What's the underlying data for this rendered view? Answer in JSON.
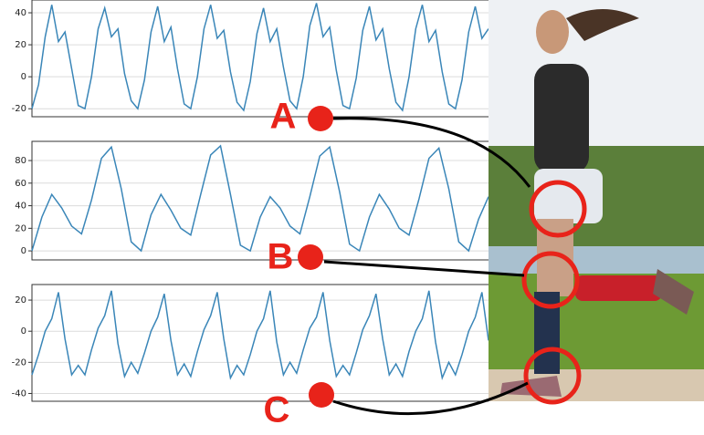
{
  "chart_data": [
    {
      "type": "line",
      "ylim": [
        -25,
        48
      ],
      "yticks": [
        -20,
        0,
        20,
        40
      ],
      "grid": true,
      "series": [
        {
          "color": "#3a86b8",
          "values": [
            -20,
            -5,
            25,
            45,
            22,
            28,
            5,
            -18,
            -20,
            0,
            30,
            43,
            25,
            30,
            2,
            -15,
            -20,
            -2,
            28,
            44,
            22,
            31,
            5,
            -17,
            -20,
            0,
            30,
            45,
            24,
            29,
            3,
            -16,
            -21,
            -3,
            27,
            43,
            22,
            30,
            6,
            -15,
            -20,
            0,
            32,
            46,
            25,
            31,
            4,
            -18,
            -20,
            -1,
            29,
            44,
            23,
            30,
            5,
            -16,
            -21,
            0,
            30,
            45,
            22,
            29,
            3,
            -17,
            -20,
            -2,
            28,
            44,
            24,
            30
          ]
        }
      ]
    },
    {
      "type": "line",
      "ylim": [
        -8,
        97
      ],
      "yticks": [
        0,
        20,
        40,
        60,
        80
      ],
      "grid": true,
      "series": [
        {
          "color": "#3a86b8",
          "values": [
            0,
            30,
            50,
            38,
            22,
            15,
            45,
            82,
            92,
            55,
            8,
            0,
            32,
            50,
            36,
            20,
            14,
            50,
            85,
            93,
            50,
            5,
            0,
            30,
            48,
            38,
            22,
            15,
            48,
            84,
            92,
            52,
            6,
            0,
            30,
            50,
            37,
            20,
            14,
            46,
            82,
            91,
            55,
            8,
            0,
            28,
            48
          ]
        }
      ]
    },
    {
      "type": "line",
      "ylim": [
        -45,
        30
      ],
      "yticks": [
        -40,
        -20,
        0,
        20
      ],
      "grid": true,
      "series": [
        {
          "color": "#3a86b8",
          "values": [
            -28,
            -15,
            0,
            8,
            25,
            -5,
            -28,
            -22,
            -28,
            -12,
            2,
            10,
            26,
            -8,
            -29,
            -20,
            -27,
            -14,
            0,
            9,
            24,
            -6,
            -28,
            -21,
            -29,
            -13,
            1,
            10,
            25,
            -5,
            -30,
            -22,
            -28,
            -15,
            0,
            8,
            26,
            -7,
            -28,
            -20,
            -27,
            -12,
            2,
            9,
            25,
            -6,
            -29,
            -22,
            -28,
            -14,
            1,
            10,
            24,
            -5,
            -28,
            -21,
            -29,
            -13,
            0,
            8,
            26,
            -7,
            -30,
            -20,
            -28,
            -15,
            0,
            9,
            25,
            -6
          ]
        }
      ]
    }
  ],
  "labels": [
    "A",
    "B",
    "C"
  ]
}
